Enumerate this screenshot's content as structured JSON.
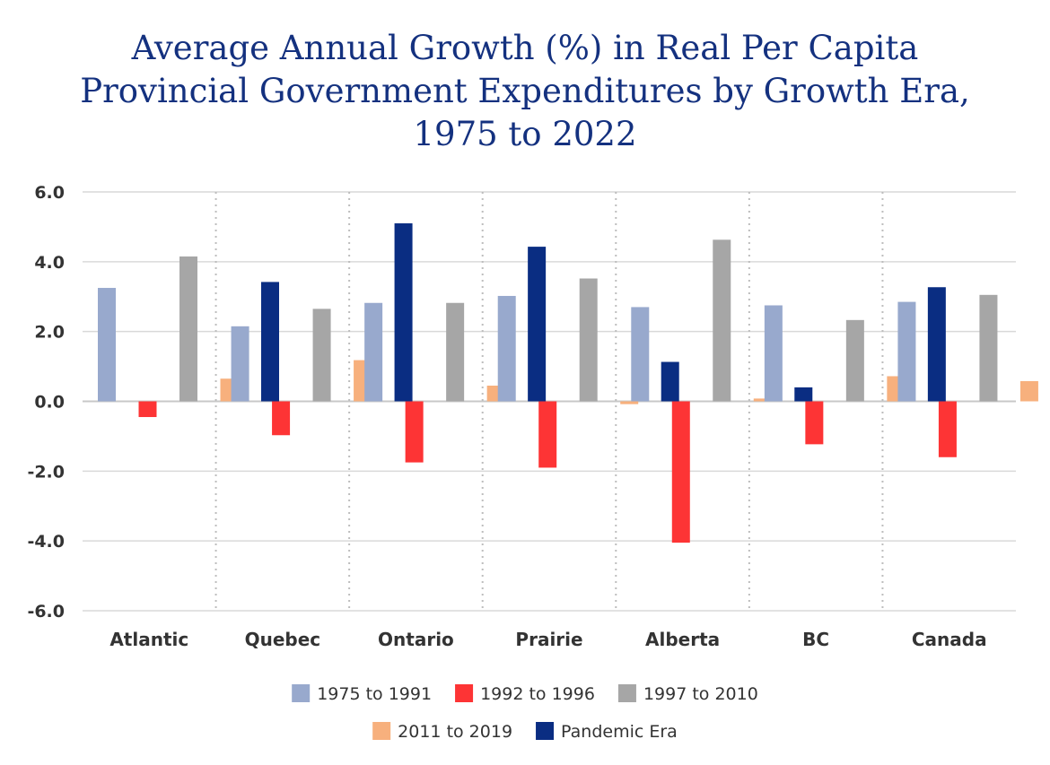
{
  "chart_data": {
    "type": "bar",
    "title_lines": [
      "Average Annual Growth (%) in Real Per Capita",
      "Provincial Government Expenditures by Growth Era,",
      "1975 to 2022"
    ],
    "categories": [
      "Atlantic",
      "Quebec",
      "Ontario",
      "Prairie",
      "Alberta",
      "BC",
      "Canada"
    ],
    "series": [
      {
        "name": "1975 to 1991",
        "color": "#98a9cd",
        "values": [
          3.25,
          2.15,
          2.82,
          3.02,
          2.7,
          2.75,
          2.85
        ]
      },
      {
        "name": "1992 to 1996",
        "color": "#fd3435",
        "values": [
          -0.45,
          -0.97,
          -1.75,
          -1.9,
          -4.05,
          -1.23,
          -1.6
        ]
      },
      {
        "name": "1997 to 2010",
        "color": "#a6a6a6",
        "values": [
          4.15,
          2.65,
          2.82,
          3.52,
          4.63,
          2.33,
          3.05
        ]
      },
      {
        "name": "2011 to 2019",
        "color": "#f7b07d",
        "values": [
          0.65,
          1.18,
          0.45,
          -0.08,
          0.08,
          0.72,
          0.58
        ]
      },
      {
        "name": "Pandemic Era",
        "color": "#0a2d82",
        "values": [
          3.42,
          5.1,
          4.43,
          1.13,
          0.4,
          3.27,
          3.57
        ]
      }
    ],
    "yticks": [
      "6.0",
      "4.0",
      "2.0",
      "0.0",
      "-2.0",
      "-4.0",
      "-6.0"
    ],
    "ylim": [
      -6,
      6
    ],
    "grid": true,
    "legend_position": "bottom"
  }
}
